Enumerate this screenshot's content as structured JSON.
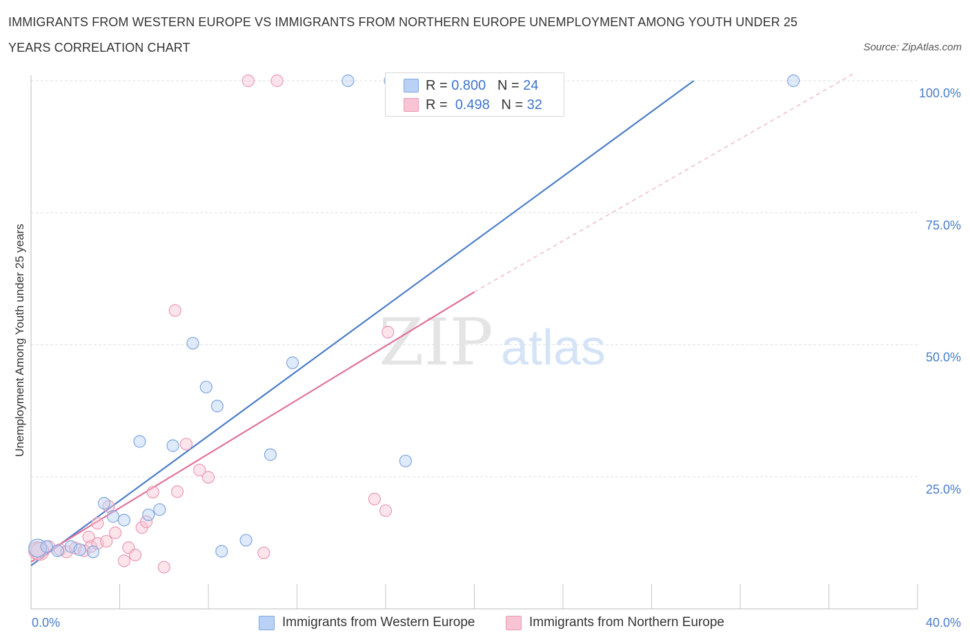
{
  "title": "IMMIGRANTS FROM WESTERN EUROPE VS IMMIGRANTS FROM NORTHERN EUROPE UNEMPLOYMENT AMONG YOUTH UNDER 25 YEARS CORRELATION CHART",
  "source": "Source: ZipAtlas.com",
  "watermark": {
    "zip": "ZIP",
    "atlas": "atlas"
  },
  "colors": {
    "blue": "#4a7cc9",
    "pink": "#e07098",
    "blue_fill": "#b8d1f5",
    "pink_fill": "#f8c3d3"
  },
  "legend_top": [
    {
      "r_label": "R = ",
      "r_value": "0.800",
      "n_label": "N = ",
      "n_value": "24"
    },
    {
      "r_label": "R = ",
      "r_value": "0.498",
      "n_label": "N = ",
      "n_value": "32"
    }
  ],
  "chart_data": {
    "type": "scatter",
    "title": "IMMIGRANTS FROM WESTERN EUROPE VS IMMIGRANTS FROM NORTHERN EUROPE UNEMPLOYMENT AMONG YOUTH UNDER 25 YEARS CORRELATION CHART",
    "xlabel": "",
    "ylabel": "Unemployment Among Youth under 25 years",
    "xlim": [
      0,
      40
    ],
    "ylim": [
      0,
      100
    ],
    "y_tick_labels": [
      "100.0%",
      "75.0%",
      "50.0%",
      "25.0%"
    ],
    "y_tick_values": [
      100,
      75,
      50,
      25
    ],
    "x_tick_labels": {
      "left": "0.0%",
      "right": "40.0%"
    },
    "legend_position": "bottom",
    "series": [
      {
        "name": "Immigrants from Western Europe",
        "R": 0.8,
        "N": 24,
        "trend": {
          "x0": 0,
          "y0": 8.2,
          "x1": 29.9,
          "y1": 100
        },
        "points": [
          [
            0.3,
            11.5
          ],
          [
            0.7,
            11.8
          ],
          [
            1.2,
            11.0
          ],
          [
            1.8,
            11.8
          ],
          [
            2.2,
            11.2
          ],
          [
            2.8,
            10.8
          ],
          [
            3.3,
            20.0
          ],
          [
            3.7,
            17.5
          ],
          [
            4.2,
            16.8
          ],
          [
            4.9,
            31.7
          ],
          [
            5.3,
            17.8
          ],
          [
            5.8,
            18.8
          ],
          [
            6.4,
            30.9
          ],
          [
            7.3,
            50.3
          ],
          [
            7.9,
            42.0
          ],
          [
            8.4,
            38.4
          ],
          [
            8.6,
            10.9
          ],
          [
            9.7,
            13.0
          ],
          [
            10.8,
            29.2
          ],
          [
            11.8,
            46.6
          ],
          [
            14.3,
            100.0
          ],
          [
            16.2,
            100.0
          ],
          [
            16.9,
            28.0
          ],
          [
            34.4,
            100.0
          ]
        ]
      },
      {
        "name": "Immigrants from Northern Europe",
        "R": 0.498,
        "N": 32,
        "trend": {
          "x0": 0,
          "y0": 8.9,
          "x1": 20.0,
          "y1": 60.0
        },
        "trend_extension": {
          "x0": 20.0,
          "y0": 60.0,
          "x1": 44.0,
          "y1": 118.0
        },
        "points": [
          [
            0.3,
            11.0
          ],
          [
            0.8,
            11.8
          ],
          [
            1.3,
            11.2
          ],
          [
            1.6,
            10.8
          ],
          [
            2.0,
            11.5
          ],
          [
            2.4,
            11.0
          ],
          [
            2.6,
            13.6
          ],
          [
            2.7,
            11.8
          ],
          [
            3.0,
            12.4
          ],
          [
            3.0,
            16.2
          ],
          [
            3.4,
            12.8
          ],
          [
            3.5,
            19.4
          ],
          [
            3.8,
            14.4
          ],
          [
            4.2,
            9.1
          ],
          [
            4.4,
            11.6
          ],
          [
            4.7,
            10.2
          ],
          [
            5.0,
            15.4
          ],
          [
            5.2,
            16.5
          ],
          [
            5.5,
            22.1
          ],
          [
            6.0,
            7.9
          ],
          [
            6.5,
            56.5
          ],
          [
            6.6,
            22.2
          ],
          [
            7.0,
            31.2
          ],
          [
            7.6,
            26.3
          ],
          [
            8.0,
            24.9
          ],
          [
            9.8,
            100.0
          ],
          [
            11.1,
            100.0
          ],
          [
            10.5,
            10.6
          ],
          [
            15.5,
            20.8
          ],
          [
            16.0,
            18.6
          ],
          [
            16.1,
            52.4
          ],
          [
            0.4,
            10.9
          ]
        ]
      }
    ]
  }
}
